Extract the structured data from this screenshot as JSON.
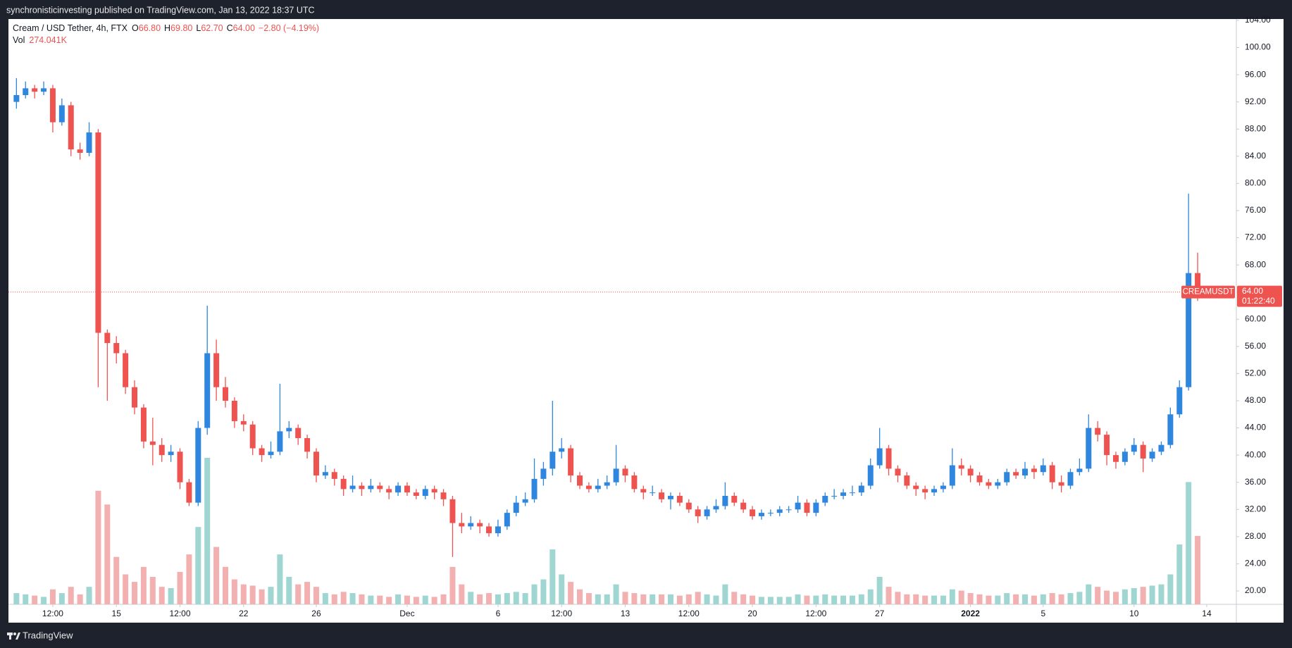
{
  "header": {
    "title": "synchronisticinvesting published on TradingView.com, Jan 13, 2022 18:37 UTC"
  },
  "footer": {
    "brand": "TradingView"
  },
  "chart_data": {
    "type": "candlestick",
    "legend": {
      "symbol": "Cream / USD Tether, 4h, FTX",
      "fields": [
        {
          "key": "O",
          "value": "66.80"
        },
        {
          "key": "H",
          "value": "69.80"
        },
        {
          "key": "L",
          "value": "62.70"
        },
        {
          "key": "C",
          "value": "64.00"
        }
      ],
      "change": "−2.80 (−4.19%)"
    },
    "volume_legend": {
      "key": "Vol",
      "value": "274.041K"
    },
    "symbol_tag": "CREAMUSDT",
    "last_price": {
      "value": 64,
      "label": "64.00"
    },
    "countdown": "01:22:40",
    "up_color": "#2e86de",
    "down_color": "#ef5350",
    "volume_up_color": "#9fd6d1",
    "volume_down_color": "#f3b0b0",
    "grid": false,
    "xlim": [
      9.06,
      76.63
    ],
    "ylim": [
      18.03,
      104.2
    ],
    "xticks": [
      {
        "value": 11.5,
        "label": "12:00"
      },
      15,
      {
        "value": 18.5,
        "label": "12:00"
      },
      22,
      26,
      {
        "value": 31,
        "label": "Dec"
      },
      {
        "value": 36,
        "label": "6"
      },
      {
        "value": 39.5,
        "label": "12:00"
      },
      {
        "value": 43,
        "label": "13"
      },
      {
        "value": 46.5,
        "label": "12:00"
      },
      {
        "value": 50,
        "label": "20"
      },
      {
        "value": 53.5,
        "label": "12:00"
      },
      {
        "value": 57,
        "label": "27"
      },
      {
        "value": 62,
        "label": "2022"
      },
      {
        "value": 66,
        "label": "5"
      },
      {
        "value": 71,
        "label": "10"
      },
      {
        "value": 75,
        "label": "14"
      }
    ],
    "yticks": [
      {
        "value": 20,
        "label": "20.00"
      },
      {
        "value": 24,
        "label": "24.00"
      },
      {
        "value": 28,
        "label": "28.00"
      },
      {
        "value": 32,
        "label": "32.00"
      },
      {
        "value": 36,
        "label": "36.00"
      },
      {
        "value": 40,
        "label": "40.00"
      },
      {
        "value": 44,
        "label": "44.00"
      },
      {
        "value": 48,
        "label": "48.00"
      },
      {
        "value": 52,
        "label": "52.00"
      },
      {
        "value": 56,
        "label": "56.00"
      },
      {
        "value": 60,
        "label": "60.00"
      },
      {
        "value": 64,
        "label": "64.00"
      },
      {
        "value": 68,
        "label": "68.00"
      },
      {
        "value": 72,
        "label": "72.00"
      },
      {
        "value": 76,
        "label": "76.00"
      },
      {
        "value": 80,
        "label": "80.00"
      },
      {
        "value": 84,
        "label": "84.00"
      },
      {
        "value": 88,
        "label": "88.00"
      },
      {
        "value": 92,
        "label": "92.00"
      },
      {
        "value": 96,
        "label": "96.00"
      },
      {
        "value": 100,
        "label": "100.00"
      },
      {
        "value": 104,
        "label": "104.00"
      }
    ],
    "x": [
      9.5,
      10,
      10.5,
      11,
      11.5,
      12,
      12.5,
      13,
      13.5,
      14,
      14.5,
      15,
      15.5,
      16,
      16.5,
      17,
      17.5,
      18,
      18.5,
      19,
      19.5,
      20,
      20.5,
      21,
      21.5,
      22,
      22.5,
      23,
      23.5,
      24,
      24.5,
      25,
      25.5,
      26,
      26.5,
      27,
      27.5,
      28,
      28.5,
      29,
      29.5,
      30,
      30.5,
      31,
      31.5,
      32,
      32.5,
      33,
      33.5,
      34,
      34.5,
      35,
      35.5,
      36,
      36.5,
      37,
      37.5,
      38,
      38.5,
      39,
      39.5,
      40,
      40.5,
      41,
      41.5,
      42,
      42.5,
      43,
      43.5,
      44,
      44.5,
      45,
      45.5,
      46,
      46.5,
      47,
      47.5,
      48,
      48.5,
      49,
      49.5,
      50,
      50.5,
      51,
      51.5,
      52,
      52.5,
      53,
      53.5,
      54,
      54.5,
      55,
      55.5,
      56,
      56.5,
      57,
      57.5,
      58,
      58.5,
      59,
      59.5,
      60,
      60.5,
      61,
      61.5,
      62,
      62.5,
      63,
      63.5,
      64,
      64.5,
      65,
      65.5,
      66,
      66.5,
      67,
      67.5,
      68,
      68.5,
      69,
      69.5,
      70,
      70.5,
      71,
      71.5,
      72,
      72.5,
      73,
      73.5,
      74,
      74.5
    ],
    "open": [
      92,
      93,
      94,
      93.5,
      94,
      89,
      91.5,
      85,
      84.5,
      87.5,
      58,
      56.5,
      55,
      50,
      47,
      42,
      41.5,
      40,
      40.5,
      36,
      33,
      44,
      55,
      50,
      48,
      45,
      44.5,
      41,
      40,
      40.5,
      43.5,
      44,
      42.5,
      40.5,
      37,
      37.5,
      36.5,
      35,
      35.5,
      35,
      35.5,
      35,
      34.5,
      35.5,
      34.5,
      34,
      35,
      34.5,
      33.5,
      30,
      29.5,
      30,
      29.5,
      28.5,
      29.5,
      31.5,
      33,
      33.5,
      36.5,
      38,
      40.5,
      41,
      37,
      35.5,
      35,
      35.5,
      36,
      38,
      37,
      35,
      34.5,
      34.5,
      33.5,
      34,
      33,
      32,
      31,
      32,
      32.5,
      34,
      33,
      32,
      31,
      31.5,
      31.5,
      32,
      32,
      33,
      31.5,
      33,
      34,
      34,
      34.5,
      34.5,
      35.5,
      38.5,
      41,
      38,
      37,
      35.5,
      35,
      34.5,
      35,
      35.5,
      38.5,
      38,
      37,
      36,
      35.5,
      36,
      37.5,
      37,
      38,
      37.5,
      38.5,
      36,
      35.5,
      37.5,
      38,
      44,
      43,
      40,
      39,
      40.5,
      41.5,
      39.5,
      40.5,
      41.5,
      46,
      50,
      66.8
    ],
    "high": [
      95.5,
      95,
      94.5,
      95,
      94.5,
      92.5,
      92,
      86,
      89,
      88,
      58.5,
      57.5,
      55.5,
      51,
      47.5,
      45.5,
      42.5,
      41.5,
      41,
      36.5,
      45,
      62,
      57,
      51.5,
      48.5,
      46,
      45,
      41.5,
      42,
      50.5,
      45,
      44.5,
      43,
      41,
      38.5,
      38,
      37,
      37,
      36,
      36.5,
      36,
      35.5,
      36,
      36,
      35,
      35.5,
      35.5,
      35,
      34,
      31.5,
      31,
      30.5,
      30,
      30.5,
      32,
      34,
      34.5,
      39.5,
      39,
      48,
      42.5,
      41.5,
      37.5,
      36,
      36.5,
      37,
      41.5,
      38.5,
      37.5,
      35.5,
      35.5,
      35,
      34.5,
      34.5,
      33.5,
      32.5,
      32.5,
      33.5,
      36,
      34.5,
      33.5,
      32.5,
      32,
      32,
      32.5,
      32.5,
      34,
      33.5,
      33.5,
      34.5,
      35,
      35,
      35.5,
      36,
      39.5,
      44,
      41.5,
      38.5,
      37.5,
      36,
      35.5,
      35.5,
      36,
      41,
      39.5,
      38.5,
      37.5,
      36.5,
      36.5,
      38,
      38,
      39,
      38.5,
      39.5,
      39,
      37,
      38,
      39.5,
      46,
      45,
      43.5,
      40.5,
      41,
      42.5,
      42,
      41,
      42,
      47,
      51,
      78.5,
      69.8
    ],
    "low": [
      91,
      92.5,
      92.5,
      93,
      87.5,
      88.5,
      84,
      83.5,
      84,
      50,
      48,
      53.5,
      49,
      46,
      41,
      38.5,
      39,
      39,
      35,
      32.5,
      32.5,
      43,
      48,
      47,
      44,
      43.5,
      40,
      39,
      39.5,
      40,
      42.5,
      41.5,
      39.5,
      36,
      36.5,
      35.5,
      34,
      34.5,
      34,
      34.5,
      34.5,
      33.5,
      34,
      34,
      33.5,
      33.5,
      33.5,
      32.5,
      25,
      28.5,
      29,
      28.5,
      28,
      28,
      29,
      31,
      32.5,
      33,
      35.5,
      37,
      39.5,
      36,
      35,
      34.5,
      34.5,
      35,
      35.5,
      36,
      34.5,
      33.5,
      34,
      33,
      32,
      32.5,
      31.5,
      30,
      30.5,
      31.5,
      32,
      32.5,
      31.5,
      30.5,
      30.5,
      31,
      31,
      31.5,
      31.5,
      31,
      31,
      32.5,
      33.5,
      33.5,
      34,
      34,
      35,
      38,
      37,
      36,
      35,
      34,
      33.5,
      34,
      34.5,
      35,
      37,
      36,
      35.5,
      35,
      35,
      35.5,
      36.5,
      36.5,
      36.5,
      37,
      35,
      34.5,
      35,
      37,
      37.5,
      42,
      38.5,
      38,
      38.5,
      40,
      37.5,
      39,
      40,
      41,
      45.5,
      49.5,
      62.7
    ],
    "close": [
      93,
      94,
      93.5,
      94,
      89,
      91.5,
      85,
      84.5,
      87.5,
      58,
      56.5,
      55,
      50,
      47,
      42,
      41.5,
      40,
      40.5,
      36,
      33,
      44,
      55,
      50,
      48,
      45,
      44.5,
      41,
      40,
      40.5,
      43.5,
      44,
      42.5,
      40.5,
      37,
      37.5,
      36.5,
      35,
      35.5,
      35,
      35.5,
      35,
      34.5,
      35.5,
      34.5,
      34,
      35,
      34.5,
      33.5,
      30,
      29.5,
      30,
      29.5,
      28.5,
      29.5,
      31.5,
      33,
      33.5,
      36.5,
      38,
      40.5,
      41,
      37,
      35.5,
      35,
      35.5,
      36,
      38,
      37,
      35,
      34.5,
      34.5,
      33.5,
      34,
      33,
      32,
      31,
      32,
      32.5,
      34,
      33,
      32,
      31,
      31.5,
      31.5,
      32,
      32,
      33,
      31.5,
      33,
      34,
      34,
      34.5,
      34.5,
      35.5,
      38.5,
      41,
      38,
      37,
      35.5,
      35,
      34.5,
      35,
      35.5,
      38.5,
      38,
      37,
      36,
      35.5,
      36,
      37.5,
      37,
      38,
      37.5,
      38.5,
      36,
      35.5,
      37.5,
      38,
      44,
      43,
      40,
      39,
      40.5,
      41.5,
      39.5,
      40.5,
      41.5,
      46,
      50,
      66.8,
      64
    ],
    "volume": [
      45000,
      40000,
      35000,
      30000,
      60000,
      45000,
      70000,
      40000,
      70000,
      455000,
      400000,
      190000,
      120000,
      90000,
      150000,
      110000,
      70000,
      65000,
      130000,
      200000,
      310000,
      587000,
      230000,
      150000,
      100000,
      80000,
      75000,
      60000,
      70000,
      200000,
      110000,
      80000,
      90000,
      70000,
      45000,
      40000,
      50000,
      45000,
      40000,
      35000,
      35000,
      30000,
      40000,
      35000,
      30000,
      35000,
      30000,
      40000,
      150000,
      80000,
      50000,
      40000,
      45000,
      40000,
      45000,
      50000,
      45000,
      80000,
      100000,
      220000,
      120000,
      90000,
      60000,
      45000,
      40000,
      40000,
      80000,
      50000,
      45000,
      40000,
      40000,
      40000,
      40000,
      35000,
      40000,
      50000,
      40000,
      35000,
      80000,
      50000,
      40000,
      35000,
      30000,
      30000,
      30000,
      30000,
      40000,
      35000,
      35000,
      40000,
      35000,
      35000,
      35000,
      40000,
      60000,
      110000,
      70000,
      50000,
      40000,
      40000,
      35000,
      35000,
      35000,
      60000,
      55000,
      45000,
      40000,
      35000,
      35000,
      45000,
      40000,
      40000,
      35000,
      40000,
      45000,
      40000,
      45000,
      50000,
      80000,
      70000,
      55000,
      50000,
      60000,
      65000,
      70000,
      75000,
      80000,
      120000,
      240000,
      490000,
      274041
    ]
  }
}
